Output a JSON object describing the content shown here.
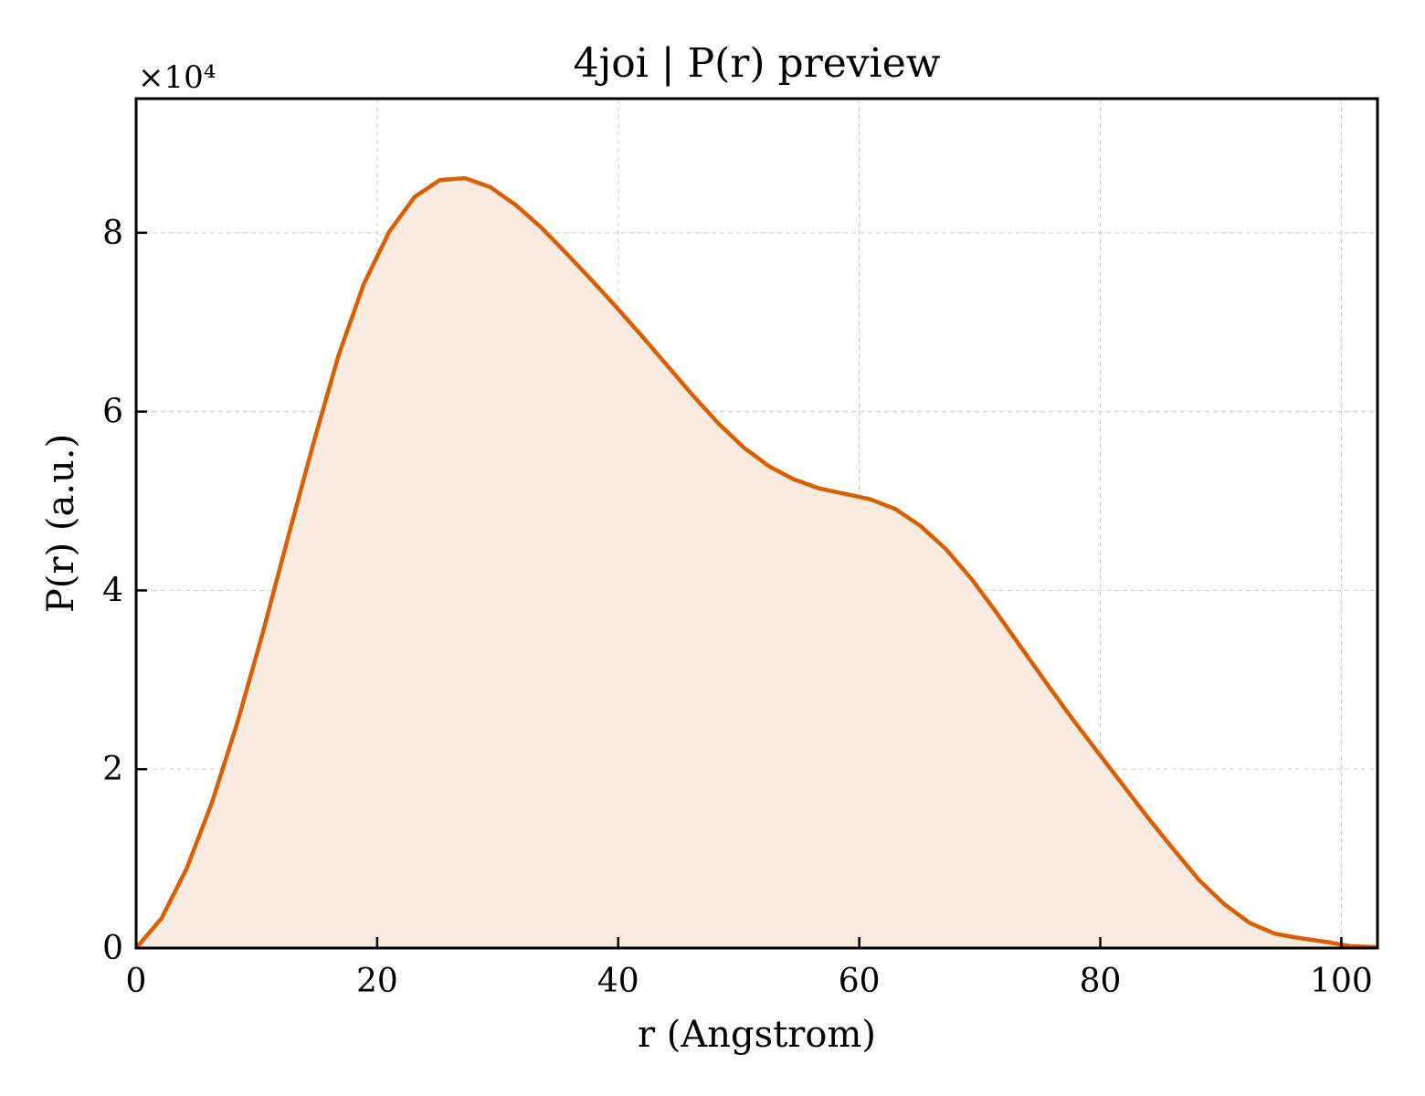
{
  "chart_data": {
    "type": "area",
    "title": "4joi | P(r) preview",
    "xlabel": "r (Angstrom)",
    "ylabel": "P(r) (a.u.)",
    "y_multiplier_label": "×10⁴",
    "y_scale": 10000,
    "xlim": [
      0,
      103
    ],
    "ylim": [
      0,
      9.5
    ],
    "xticks": [
      0,
      20,
      40,
      60,
      80,
      100
    ],
    "yticks": [
      0,
      2,
      4,
      6,
      8
    ],
    "grid": true,
    "tick_direction": "in",
    "line_color": "#d95f02",
    "fill_color": "#f9ebe0",
    "series": [
      {
        "x": [
          0,
          2.1,
          4.2,
          6.3,
          8.4,
          10.5,
          12.6,
          14.7,
          16.8,
          18.9,
          21.0,
          23.1,
          25.2,
          27.3,
          29.4,
          31.5,
          33.6,
          35.7,
          37.8,
          39.9,
          42.0,
          44.1,
          46.2,
          48.3,
          50.4,
          52.5,
          54.6,
          56.7,
          58.8,
          60.9,
          63.0,
          65.1,
          67.2,
          69.3,
          71.4,
          73.5,
          75.6,
          77.7,
          79.8,
          81.9,
          84.0,
          86.1,
          88.2,
          90.3,
          92.4,
          94.5,
          96.6,
          98.7,
          100.8,
          102.9
        ],
        "y": [
          0.0,
          0.33,
          0.89,
          1.63,
          2.52,
          3.52,
          4.59,
          5.64,
          6.63,
          7.43,
          8.01,
          8.4,
          8.59,
          8.61,
          8.51,
          8.31,
          8.06,
          7.77,
          7.47,
          7.16,
          6.84,
          6.51,
          6.18,
          5.87,
          5.6,
          5.39,
          5.24,
          5.14,
          5.08,
          5.02,
          4.91,
          4.72,
          4.46,
          4.13,
          3.75,
          3.35,
          2.95,
          2.56,
          2.19,
          1.82,
          1.45,
          1.1,
          0.76,
          0.49,
          0.28,
          0.16,
          0.11,
          0.07,
          0.02,
          0.01
        ]
      }
    ]
  }
}
